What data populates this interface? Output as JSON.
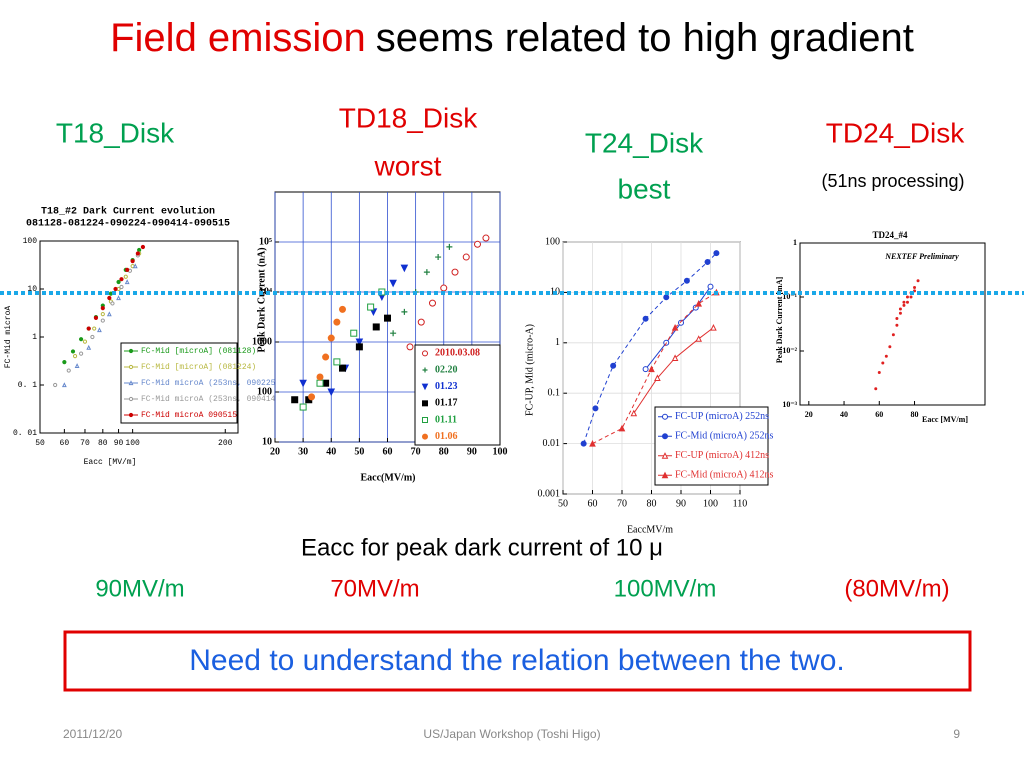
{
  "slide": {
    "title_highlight": "Field emission",
    "title_rest": "seems related to high gradient",
    "columns": [
      {
        "name": "T18_Disk",
        "color": "#00a050"
      },
      {
        "name": "TD18_Disk",
        "note": "worst",
        "color": "#e00000"
      },
      {
        "name": "T24_Disk",
        "note": "best",
        "color": "#00a050"
      },
      {
        "name": "TD24_Disk",
        "note": "(51ns processing)",
        "color": "#e00000"
      }
    ],
    "caption": "Eacc for peak dark current of 10 μ",
    "results": [
      {
        "text": "90MV/m",
        "color": "#00a050"
      },
      {
        "text": "70MV/m",
        "color": "#e00000"
      },
      {
        "text": "100MV/m",
        "color": "#00a050"
      },
      {
        "text": "(80MV/m)",
        "color": "#e00000"
      }
    ],
    "conclusion": "Need to understand the relation between the two.",
    "footer": {
      "date": "2011/12/20",
      "center": "US/Japan Workshop (Toshi Higo)",
      "page": "9"
    }
  },
  "charts": [
    {
      "type": "scatter",
      "title": "T18_#2  Dark Current evolution",
      "subtitle": "081128-081224-090224-090414-090515",
      "xlabel": "Eacc [MV/m]",
      "ylabel": "FC-Mid  microA",
      "xlog": true,
      "ylog": true,
      "xlim": [
        50,
        220
      ],
      "ylim": [
        0.01,
        100
      ],
      "xticks": [
        50,
        60,
        70,
        80,
        90,
        100,
        200
      ],
      "yticks": [
        100,
        10,
        1,
        {
          "value": 0.1,
          "label": "0. 1"
        },
        {
          "value": 0.01,
          "label": "0. 01"
        }
      ],
      "grid": false,
      "legend": true,
      "series": [
        {
          "name": "FC-Mid [microA] (081128)",
          "color": "#1a9a1a",
          "marker": "circle",
          "x": [
            60,
            64,
            68,
            72,
            76,
            80,
            85,
            90,
            95,
            100,
            105
          ],
          "values": [
            0.3,
            0.5,
            0.9,
            1.5,
            2.6,
            4.5,
            8,
            14,
            25,
            40,
            65
          ]
        },
        {
          "name": "FC-Mid [microA] (081224)",
          "color": "#b8b840",
          "marker": "circle-open",
          "x": [
            65,
            70,
            75,
            80,
            85,
            90,
            95,
            100,
            105
          ],
          "values": [
            0.4,
            0.8,
            1.5,
            3,
            5.5,
            10,
            18,
            30,
            55
          ]
        },
        {
          "name": "FC-Mid  microA  (253ns, 090225)",
          "color": "#6688cc",
          "marker": "triangle-open",
          "x": [
            60,
            66,
            72,
            78,
            84,
            90,
            96,
            102
          ],
          "values": [
            0.1,
            0.25,
            0.6,
            1.4,
            3,
            6.5,
            14,
            30
          ]
        },
        {
          "name": "FC-Mid  microA  (253ns, 090414)",
          "color": "#999999",
          "marker": "circle-open",
          "x": [
            56,
            62,
            68,
            74,
            80,
            86,
            92,
            98,
            104
          ],
          "values": [
            0.1,
            0.2,
            0.45,
            1,
            2.2,
            5,
            11,
            24,
            50
          ]
        },
        {
          "name": "FC-Mid  microA  090515",
          "color": "#cc0000",
          "marker": "circle",
          "x": [
            72,
            76,
            80,
            84,
            88,
            92,
            96,
            100,
            104,
            108
          ],
          "values": [
            1.5,
            2.5,
            4,
            6.5,
            10,
            16,
            25,
            38,
            55,
            75
          ]
        }
      ]
    },
    {
      "type": "scatter",
      "xlabel": "Eacc(MV/m)",
      "ylabel": "Peak Dark Current (nA)",
      "xlog": false,
      "ylog": true,
      "xlim": [
        20,
        100
      ],
      "ylim": [
        10,
        1000000
      ],
      "xticks": [
        20,
        30,
        40,
        50,
        60,
        70,
        80,
        90,
        100
      ],
      "yticks": [
        10,
        100,
        1000,
        {
          "value": 10000,
          "label": "10⁴"
        },
        {
          "value": 100000,
          "label": "10⁵"
        }
      ],
      "grid": true,
      "grid_color": "#3050d0",
      "legend": true,
      "series": [
        {
          "name": "2010.03.08",
          "color": "#d02020",
          "marker": "circle-open",
          "x": [
            68,
            72,
            76,
            80,
            84,
            88,
            92,
            95
          ],
          "values": [
            800,
            2500,
            6000,
            12000,
            25000,
            50000,
            90000,
            120000
          ]
        },
        {
          "name": "02.20",
          "color": "#208040",
          "marker": "plus",
          "x": [
            62,
            66,
            70,
            74,
            78,
            82
          ],
          "values": [
            1500,
            4000,
            10000,
            25000,
            50000,
            80000
          ]
        },
        {
          "name": "01.23",
          "color": "#1030d0",
          "marker": "triangle-down",
          "x": [
            30,
            40,
            45,
            50,
            55,
            58,
            62,
            66
          ],
          "values": [
            150,
            100,
            300,
            1000,
            4000,
            8000,
            15000,
            30000
          ]
        },
        {
          "name": "01.17",
          "color": "#000000",
          "marker": "square",
          "x": [
            27,
            32,
            38,
            44,
            50,
            56,
            60
          ],
          "values": [
            70,
            70,
            150,
            300,
            800,
            2000,
            3000
          ]
        },
        {
          "name": "01.11",
          "color": "#20a040",
          "marker": "square-open",
          "x": [
            30,
            36,
            42,
            48,
            54,
            58
          ],
          "values": [
            50,
            150,
            400,
            1500,
            5000,
            10000
          ]
        },
        {
          "name": "01.06",
          "color": "#f07020",
          "marker": "circle",
          "x": [
            33,
            36,
            38,
            40,
            42,
            44
          ],
          "values": [
            80,
            200,
            500,
            1200,
            2500,
            4500
          ]
        }
      ]
    },
    {
      "type": "scatter",
      "xlabel": "EaccMV/m",
      "ylabel": "FC-UP, Mid  (micro-A)",
      "xlog": false,
      "ylog": true,
      "xlim": [
        50,
        110
      ],
      "ylim": [
        0.001,
        100
      ],
      "xticks": [
        50,
        60,
        70,
        80,
        90,
        100,
        110
      ],
      "yticks": [
        100,
        10,
        1,
        0.1,
        0.01,
        0.001
      ],
      "grid": true,
      "grid_color": "#dddddd",
      "legend": true,
      "series": [
        {
          "name": "FC-UP (microA) 252ns",
          "color": "#2040d0",
          "marker": "circle-open",
          "line": "solid",
          "x": [
            78,
            85,
            90,
            95,
            100
          ],
          "values": [
            0.3,
            1,
            2.5,
            5,
            13
          ]
        },
        {
          "name": "FC-Mid (microA) 252ns",
          "color": "#2040d0",
          "marker": "circle",
          "line": "dashed",
          "x": [
            57,
            61,
            67,
            78,
            85,
            92,
            99,
            102
          ],
          "values": [
            0.01,
            0.05,
            0.35,
            3,
            8,
            17,
            40,
            60
          ]
        },
        {
          "name": "FC-UP (microA) 412ns",
          "color": "#e03030",
          "marker": "triangle-open",
          "line": "solid",
          "x": [
            74,
            82,
            88,
            96,
            101
          ],
          "values": [
            0.04,
            0.2,
            0.5,
            1.2,
            2
          ]
        },
        {
          "name": "FC-Mid (microA) 412ns",
          "color": "#e03030",
          "marker": "triangle",
          "line": "dashed",
          "x": [
            60,
            70,
            80,
            88,
            96,
            102
          ],
          "values": [
            0.01,
            0.02,
            0.3,
            2,
            6,
            10
          ]
        }
      ]
    },
    {
      "type": "scatter",
      "title": "TD24_#4",
      "annotation": "NEXTEF Preliminary",
      "xlabel": "Eacc  [MV/m]",
      "ylabel": "Peak Dark Current  [mA]",
      "xlog": false,
      "ylog": true,
      "xlim": [
        15,
        120
      ],
      "ylim": [
        0.001,
        1
      ],
      "xticks": [
        20,
        40,
        60,
        80
      ],
      "yticks": [
        1,
        {
          "value": 0.1,
          "label": "10⁻¹"
        },
        {
          "value": 0.01,
          "label": "10⁻²"
        },
        {
          "value": 0.001,
          "label": "10⁻³"
        }
      ],
      "grid": false,
      "legend": false,
      "series": [
        {
          "color": "#e02020",
          "marker": "dot",
          "x": [
            58,
            60,
            62,
            64,
            66,
            68,
            70,
            70,
            72,
            72,
            74,
            74,
            76,
            76,
            78,
            78,
            80,
            80,
            82
          ],
          "values": [
            0.002,
            0.004,
            0.006,
            0.008,
            0.012,
            0.02,
            0.03,
            0.04,
            0.05,
            0.06,
            0.07,
            0.08,
            0.08,
            0.1,
            0.1,
            0.12,
            0.15,
            0.13,
            0.2
          ]
        }
      ]
    }
  ]
}
